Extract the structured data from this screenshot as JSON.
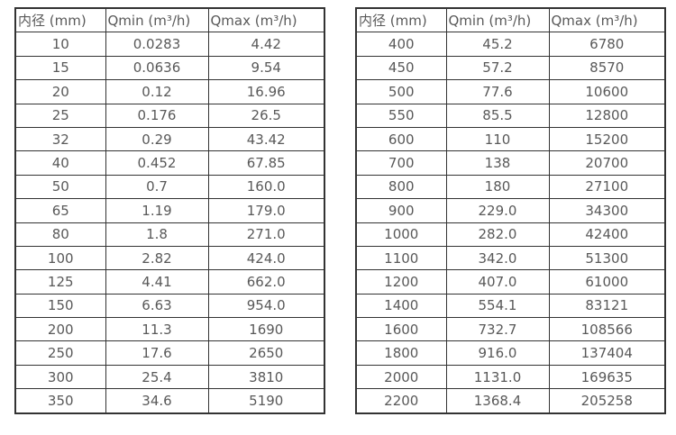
{
  "colors": {
    "border": "#333333",
    "text": "#595959",
    "background": "#ffffff"
  },
  "table_left": {
    "headers": [
      "内径 (mm)",
      "Qmin (m³/h)",
      "Qmax (m³/h)"
    ],
    "rows": [
      [
        "10",
        "0.0283",
        "4.42"
      ],
      [
        "15",
        "0.0636",
        "9.54"
      ],
      [
        "20",
        "0.12",
        "16.96"
      ],
      [
        "25",
        "0.176",
        "26.5"
      ],
      [
        "32",
        "0.29",
        "43.42"
      ],
      [
        "40",
        "0.452",
        "67.85"
      ],
      [
        "50",
        "0.7",
        "160.0"
      ],
      [
        "65",
        "1.19",
        "179.0"
      ],
      [
        "80",
        "1.8",
        "271.0"
      ],
      [
        "100",
        "2.82",
        "424.0"
      ],
      [
        "125",
        "4.41",
        "662.0"
      ],
      [
        "150",
        "6.63",
        "954.0"
      ],
      [
        "200",
        "11.3",
        "1690"
      ],
      [
        "250",
        "17.6",
        "2650"
      ],
      [
        "300",
        "25.4",
        "3810"
      ],
      [
        "350",
        "34.6",
        "5190"
      ]
    ]
  },
  "table_right": {
    "headers": [
      "内径 (mm)",
      "Qmin (m³/h)",
      "Qmax (m³/h)"
    ],
    "rows": [
      [
        "400",
        "45.2",
        "6780"
      ],
      [
        "450",
        "57.2",
        "8570"
      ],
      [
        "500",
        "77.6",
        "10600"
      ],
      [
        "550",
        "85.5",
        "12800"
      ],
      [
        "600",
        "110",
        "15200"
      ],
      [
        "700",
        "138",
        "20700"
      ],
      [
        "800",
        "180",
        "27100"
      ],
      [
        "900",
        "229.0",
        "34300"
      ],
      [
        "1000",
        "282.0",
        "42400"
      ],
      [
        "1100",
        "342.0",
        "51300"
      ],
      [
        "1200",
        "407.0",
        "61000"
      ],
      [
        "1400",
        "554.1",
        "83121"
      ],
      [
        "1600",
        "732.7",
        "108566"
      ],
      [
        "1800",
        "916.0",
        "137404"
      ],
      [
        "2000",
        "1131.0",
        "169635"
      ],
      [
        "2200",
        "1368.4",
        "205258"
      ]
    ]
  }
}
